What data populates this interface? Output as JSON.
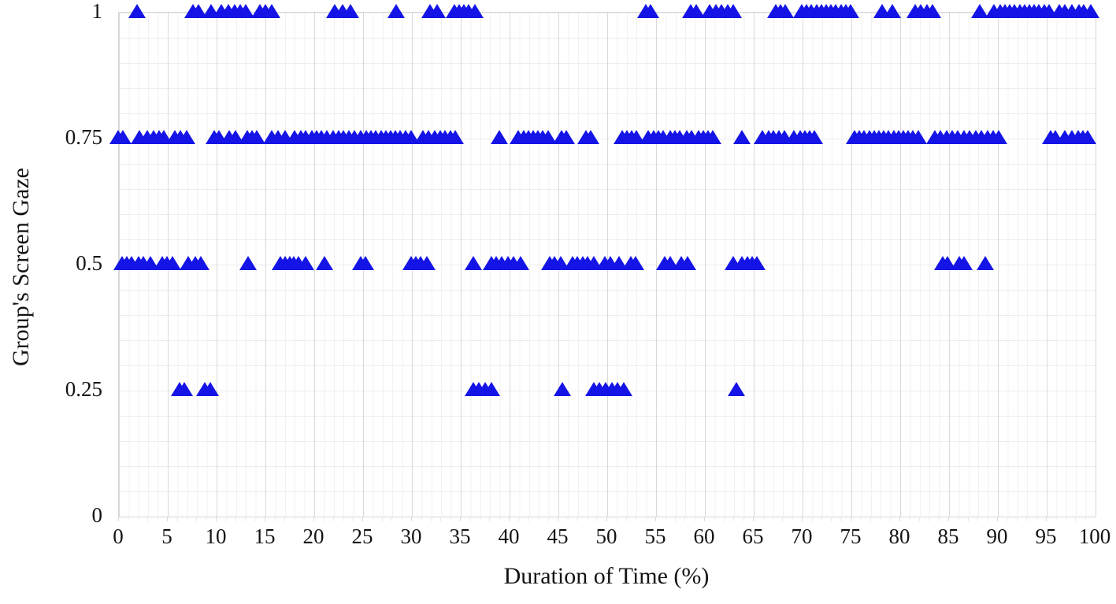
{
  "chart_data": {
    "type": "scatter",
    "title": "",
    "xlabel": "Duration of Time (%)",
    "ylabel": "Group's Screen Gaze",
    "xlim": [
      0,
      100
    ],
    "ylim": [
      0,
      1
    ],
    "x_ticks": [
      0,
      5,
      10,
      15,
      20,
      25,
      30,
      35,
      40,
      45,
      50,
      55,
      60,
      65,
      70,
      75,
      80,
      85,
      90,
      95,
      100
    ],
    "y_ticks": [
      "0",
      "0.25",
      "0.5",
      "0.75",
      "1"
    ],
    "y_tick_values": [
      0,
      0.25,
      0.5,
      0.75,
      1
    ],
    "grid": {
      "minor_x_step": 1,
      "major_x_step": 5,
      "minor_y_step": 0.05,
      "on": true
    },
    "legend": "none",
    "marker": {
      "shape": "triangle-up",
      "color": "#1414e6",
      "width": 22,
      "height": 18
    },
    "series": [
      {
        "name": "group-screen-gaze",
        "rows": [
          {
            "y": 1,
            "x": [
              1.9,
              7.7,
              8.2,
              9.5,
              10.6,
              11.3,
              11.9,
              12.5,
              13.1,
              14.5,
              15.1,
              15.7,
              22.2,
              23.0,
              23.8,
              28.5,
              31.9,
              32.7,
              34.4,
              34.9,
              35.4,
              35.9,
              36.5,
              54.0,
              54.5,
              58.6,
              59.2,
              60.6,
              61.2,
              61.8,
              62.4,
              63.0,
              67.3,
              67.8,
              68.3,
              70.0,
              70.5,
              71.0,
              71.5,
              72.0,
              72.5,
              73.0,
              73.5,
              74.0,
              74.5,
              75.0,
              78.2,
              79.3,
              81.6,
              82.2,
              82.8,
              83.4,
              88.2,
              89.7,
              90.3,
              90.8,
              91.3,
              91.8,
              92.3,
              92.8,
              93.3,
              93.8,
              94.3,
              94.8,
              95.3,
              96.4,
              96.9,
              97.7,
              98.4,
              98.9,
              99.6
            ]
          },
          {
            "y": 0.75,
            "x": [
              0.0,
              0.5,
              2.2,
              3.0,
              3.6,
              4.2,
              4.7,
              5.8,
              6.4,
              7.0,
              9.8,
              10.3,
              11.4,
              12.0,
              13.2,
              13.7,
              14.2,
              15.7,
              16.4,
              17.1,
              18.1,
              18.7,
              19.2,
              19.8,
              20.3,
              20.8,
              21.4,
              22.0,
              22.6,
              23.1,
              23.6,
              24.2,
              24.8,
              25.4,
              25.9,
              26.4,
              26.9,
              27.4,
              27.9,
              28.4,
              28.9,
              29.4,
              30.0,
              31.2,
              31.8,
              32.4,
              33.0,
              33.5,
              34.0,
              34.5,
              39.0,
              41.0,
              41.5,
              42.0,
              42.5,
              43.0,
              43.5,
              44.0,
              45.4,
              45.9,
              47.9,
              48.4,
              51.6,
              52.1,
              52.6,
              53.1,
              54.3,
              54.8,
              55.3,
              55.8,
              56.5,
              57.0,
              57.5,
              58.2,
              58.7,
              59.4,
              59.9,
              60.4,
              60.9,
              63.9,
              66.0,
              66.6,
              67.1,
              67.7,
              68.2,
              69.2,
              69.8,
              70.3,
              70.8,
              71.3,
              75.4,
              75.9,
              76.4,
              76.9,
              77.4,
              77.9,
              78.4,
              78.9,
              79.4,
              79.9,
              80.4,
              80.9,
              81.4,
              81.9,
              83.6,
              84.2,
              84.8,
              85.4,
              86.0,
              86.6,
              87.2,
              87.8,
              88.4,
              89.0,
              89.6,
              90.2,
              95.5,
              96.0,
              96.9,
              97.7,
              98.3,
              98.8,
              99.3
            ]
          },
          {
            "y": 0.5,
            "x": [
              0.4,
              0.9,
              1.4,
              2.1,
              2.6,
              3.3,
              4.5,
              5.0,
              5.6,
              7.2,
              7.9,
              8.5,
              13.3,
              16.6,
              17.1,
              17.6,
              18.0,
              18.5,
              19.2,
              21.1,
              24.8,
              25.3,
              30.0,
              30.5,
              31.0,
              31.6,
              36.4,
              38.2,
              38.7,
              39.3,
              39.9,
              40.5,
              41.2,
              44.2,
              44.7,
              45.3,
              46.5,
              47.0,
              47.6,
              48.1,
              48.7,
              49.8,
              50.4,
              51.3,
              52.5,
              53.0,
              56.0,
              56.5,
              57.7,
              58.3,
              63.0,
              63.9,
              64.4,
              64.9,
              65.4,
              84.4,
              84.9,
              86.1,
              86.6,
              88.8
            ]
          },
          {
            "y": 0.25,
            "x": [
              6.3,
              6.8,
              8.9,
              9.4,
              36.4,
              36.9,
              37.6,
              38.2,
              45.5,
              48.7,
              49.3,
              49.9,
              50.6,
              51.1,
              51.8,
              63.3
            ]
          }
        ]
      }
    ]
  }
}
